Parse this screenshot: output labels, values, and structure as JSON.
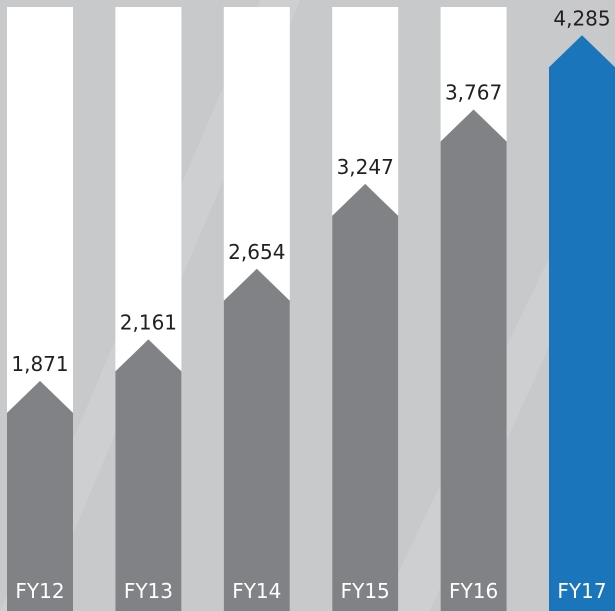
{
  "chart_data": {
    "type": "bar",
    "categories": [
      "FY12",
      "FY13",
      "FY14",
      "FY15",
      "FY16",
      "FY17"
    ],
    "values": [
      1871,
      2161,
      2654,
      3247,
      3767,
      4285
    ],
    "value_labels": [
      "1,871",
      "2,161",
      "2,654",
      "3,247",
      "3,767",
      "4,285"
    ],
    "title": "",
    "xlabel": "",
    "ylabel": "",
    "grid": false,
    "highlight_index": 5
  },
  "colors": {
    "background": "#c8c9cb",
    "column_track": "#ffffff",
    "bar": "#808285",
    "highlight_bar": "#1b75bb",
    "value_text": "#231f20",
    "category_text": "#ffffff"
  }
}
